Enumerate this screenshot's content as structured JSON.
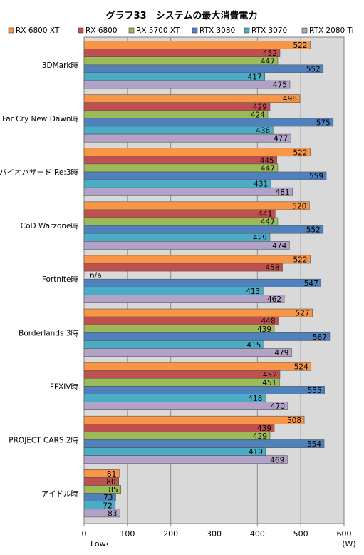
{
  "chart_data": {
    "type": "bar",
    "orientation": "horizontal",
    "title": "グラフ33　システムの最大消費電力",
    "categories": [
      "3DMark時",
      "Far Cry New Dawn時",
      "バイオハザード Re:3時",
      "CoD Warzone時",
      "Fortnite時",
      "Borderlands 3時",
      "FFXIV時",
      "PROJECT CARS 2時",
      "アイドル時"
    ],
    "series": [
      {
        "name": "RX 6800 XT",
        "color": "#f79646",
        "values": [
          522,
          498,
          522,
          520,
          522,
          527,
          524,
          508,
          81
        ]
      },
      {
        "name": "RX 6800",
        "color": "#c0504d",
        "values": [
          452,
          429,
          445,
          441,
          458,
          448,
          452,
          439,
          80
        ]
      },
      {
        "name": "RX 5700 XT",
        "color": "#9bbb59",
        "values": [
          447,
          424,
          447,
          447,
          null,
          439,
          451,
          429,
          85
        ]
      },
      {
        "name": "RTX 3080",
        "color": "#4f81bd",
        "values": [
          552,
          575,
          559,
          552,
          547,
          567,
          555,
          554,
          73
        ]
      },
      {
        "name": "RTX 3070",
        "color": "#4bacc6",
        "values": [
          417,
          436,
          431,
          429,
          413,
          415,
          418,
          419,
          72
        ]
      },
      {
        "name": "RTX 2080 Ti",
        "color": "#b3a2c7",
        "values": [
          475,
          477,
          481,
          474,
          462,
          479,
          470,
          469,
          83
        ]
      }
    ],
    "na_label": "n/a",
    "xlim": [
      0,
      600
    ],
    "xticks": [
      0,
      100,
      200,
      300,
      400,
      500,
      600
    ],
    "x_unit": "(W)",
    "x_direction_label": "Low←",
    "grid": true,
    "legend_position": "top",
    "plot_background": "#d9d9d9"
  }
}
